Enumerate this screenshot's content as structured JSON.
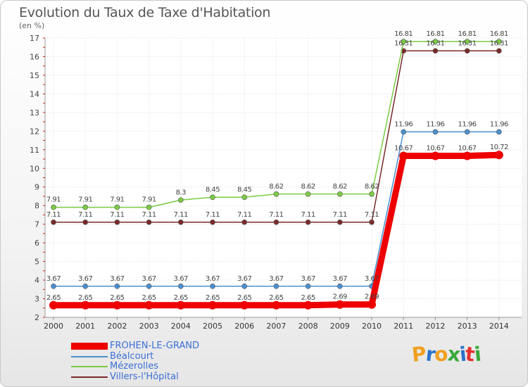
{
  "header": {
    "title": "Evolution du Taux de Taxe d'Habitation",
    "subtitle": "(en %)"
  },
  "brand": {
    "letters": [
      "P",
      "r",
      "o",
      "x",
      "i",
      "t",
      "i"
    ],
    "colors": [
      "#f0a020",
      "#2a74c8",
      "#f0a020",
      "#3aa83a",
      "#2a74c8",
      "#e53030",
      "#3aa83a"
    ]
  },
  "chart_data": {
    "type": "line",
    "title": "Evolution du Taux de Taxe d'Habitation",
    "ylabel": "(en %)",
    "xlabel": "",
    "ylim": [
      2,
      17
    ],
    "yticks": [
      "2",
      "3",
      "4",
      "5",
      "6",
      "7",
      "8",
      "9",
      "10",
      "11",
      "12",
      "13",
      "14",
      "15",
      "16",
      "17"
    ],
    "x": [
      "2000",
      "2001",
      "2002",
      "2003",
      "2004",
      "2005",
      "2006",
      "2007",
      "2008",
      "2009",
      "2010",
      "2011",
      "2012",
      "2013",
      "2014"
    ],
    "series": [
      {
        "name": "FROHEN-LE-GRAND",
        "color": "#ee0000",
        "values": [
          2.65,
          2.65,
          2.65,
          2.65,
          2.65,
          2.65,
          2.65,
          2.65,
          2.65,
          2.69,
          2.69,
          10.67,
          10.67,
          10.67,
          10.72
        ],
        "labels": [
          "2.65",
          "2.65",
          "2.65",
          "2.65",
          "2.65",
          "2.65",
          "2.65",
          "2.65",
          "2.65",
          "2.69",
          "2.69",
          "10.67",
          "10.67",
          "10.67",
          "10.72"
        ]
      },
      {
        "name": "Béalcourt",
        "color": "#4a90d0",
        "values": [
          3.67,
          3.67,
          3.67,
          3.67,
          3.67,
          3.67,
          3.67,
          3.67,
          3.67,
          3.67,
          3.67,
          11.96,
          11.96,
          11.96,
          11.96
        ],
        "labels": [
          "3.67",
          "3.67",
          "3.67",
          "3.67",
          "3.67",
          "3.67",
          "3.67",
          "3.67",
          "3.67",
          "3.67",
          "3.67",
          "11.96",
          "11.96",
          "11.96",
          "11.96"
        ]
      },
      {
        "name": "Mézerolles",
        "color": "#7ccc44",
        "values": [
          7.91,
          7.91,
          7.91,
          7.91,
          8.3,
          8.45,
          8.45,
          8.62,
          8.62,
          8.62,
          8.62,
          16.81,
          16.81,
          16.81,
          16.81
        ],
        "labels": [
          "7.91",
          "7.91",
          "7.91",
          "7.91",
          "8.3",
          "8.45",
          "8.45",
          "8.62",
          "8.62",
          "8.62",
          "8.62",
          "16.81",
          "16.81",
          "16.81",
          "16.81"
        ]
      },
      {
        "name": "Villers-l'Hôpital",
        "color": "#7a2a2a",
        "values": [
          7.11,
          7.11,
          7.11,
          7.11,
          7.11,
          7.11,
          7.11,
          7.11,
          7.11,
          7.11,
          7.11,
          16.31,
          16.31,
          16.31,
          16.31
        ],
        "labels": [
          "7.11",
          "7.11",
          "7.11",
          "7.11",
          "7.11",
          "7.11",
          "7.11",
          "7.11",
          "7.11",
          "7.11",
          "7.11",
          "16.31",
          "16.31",
          "16.31",
          "16.31"
        ]
      }
    ],
    "legend_position": "bottom-left"
  }
}
